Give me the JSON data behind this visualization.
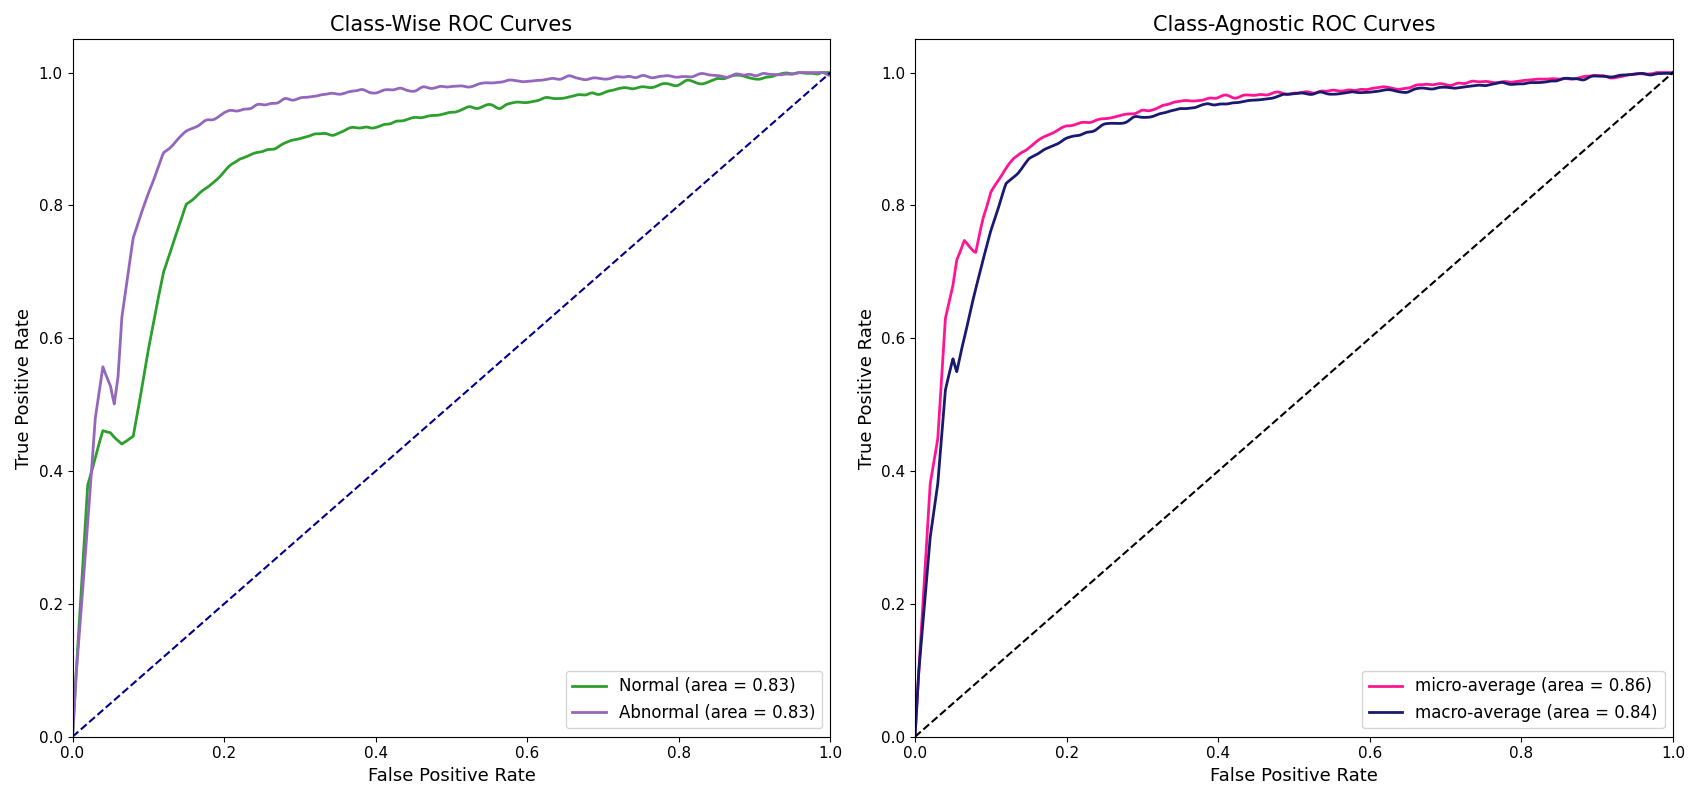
{
  "title_left": "Class-Wise ROC Curves",
  "title_right": "Class-Agnostic ROC Curves",
  "xlabel": "False Positive Rate",
  "ylabel": "True Positive Rate",
  "diagonal_color_left": "#00008B",
  "diagonal_color_right": "#000000",
  "normal_color": "#2ca02c",
  "abnormal_color": "#9467bd",
  "micro_color": "#FF1493",
  "macro_color": "#191970",
  "normal_label": "Normal (area = 0.83)",
  "abnormal_label": "Abnormal (area = 0.83)",
  "micro_label": "micro-average (area = 0.86)",
  "macro_label": "macro-average (area = 0.84)",
  "line_width": 2.0,
  "figsize": [
    17.0,
    8.0
  ],
  "dpi": 100
}
